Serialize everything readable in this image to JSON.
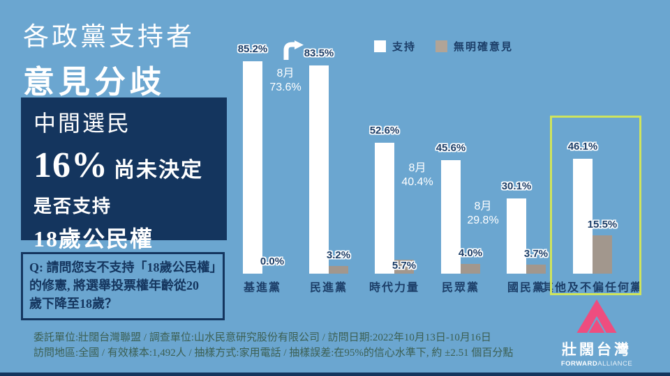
{
  "colors": {
    "background": "#6ba6d0",
    "navy": "#14355e",
    "bar_support": "#ffffff",
    "bar_unclear": "#a2978d",
    "highlight_outline": "#cfe45c",
    "logo_pink": "#ee4d7f",
    "footer_text": "#3b5f52"
  },
  "header": {
    "title_line1": "各政黨支持者",
    "title_line2": "意見分歧"
  },
  "callout": {
    "line1": "中間選民",
    "percent": "16%",
    "line2_rest": "尚未決定",
    "line3": "是否支持",
    "line4": "18歲公民權"
  },
  "question": {
    "lines": [
      "Q: 請問您支不支持「18歲公民權」",
      "的修憲, 將選舉投票權年齡從20",
      "歲下降至18歲？"
    ]
  },
  "legend": {
    "support_label": "支持",
    "unclear_label": "無明確意見"
  },
  "chart_data": {
    "type": "bar",
    "categories": [
      "基進黨",
      "民進黨",
      "時代力量",
      "民眾黨",
      "國民黨",
      "其他及不偏任何黨"
    ],
    "series": [
      {
        "name": "支持",
        "color": "#ffffff",
        "values": [
          85.2,
          83.5,
          52.6,
          45.6,
          30.1,
          46.1
        ]
      },
      {
        "name": "無明確意見",
        "color": "#a2978d",
        "values": [
          0.0,
          3.2,
          5.7,
          4.0,
          3.7,
          15.5
        ]
      }
    ],
    "value_label_format": "percent_one_decimal",
    "annotations": [
      {
        "category": "民進黨",
        "text": "8月",
        "value": "73.6%",
        "arrow": true
      },
      {
        "category": "民眾黨",
        "text": "8月",
        "value": "40.4%",
        "arrow": false
      },
      {
        "category": "國民黨",
        "text": "8月",
        "value": "29.8%",
        "arrow": false
      }
    ],
    "highlight_category": "其他及不偏任何黨",
    "ylim": [
      0,
      100
    ],
    "legend_position": "top",
    "grid": false,
    "axes_visible": false
  },
  "footer": {
    "line1": "委託單位:壯闊台灣聯盟 / 調查單位:山水民意研究股份有限公司 / 訪問日期:2022年10月13日-10月16日",
    "line2": "訪問地區:全國 / 有效樣本:1,492人 / 抽樣方式:家用電話 / 抽樣誤差:在95%的信心水準下, 約 ±2.51 個百分點"
  },
  "logo": {
    "name_zh": "壯闊台灣",
    "name_en_bold": "FORWARD",
    "name_en_light": "ALLIANCE"
  }
}
